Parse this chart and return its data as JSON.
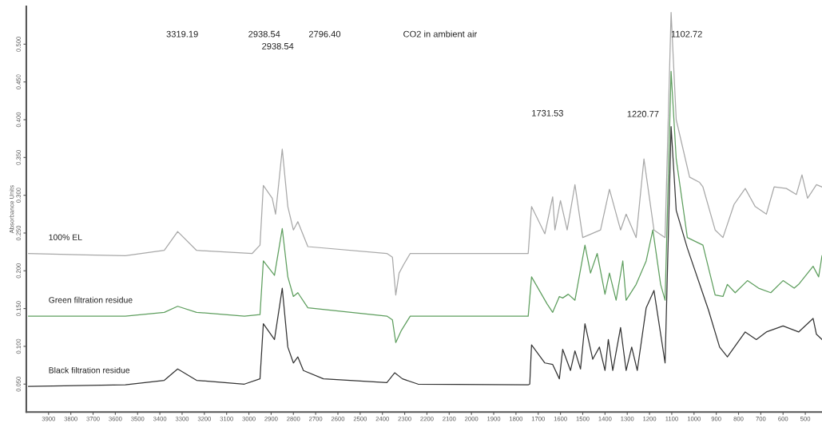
{
  "chart_data": {
    "type": "line",
    "ylabel": "Absorbance Units",
    "xlim": [
      4000,
      425
    ],
    "ylim": [
      0.013,
      0.55
    ],
    "xticks": [
      3900,
      3800,
      3700,
      3600,
      3500,
      3400,
      3300,
      3200,
      3100,
      3000,
      2900,
      2800,
      2700,
      2600,
      2500,
      2400,
      2300,
      2200,
      2100,
      2000,
      1900,
      1800,
      1700,
      1600,
      1500,
      1400,
      1300,
      1200,
      1100,
      1000,
      900,
      800,
      700,
      600,
      500
    ],
    "yticks": [
      {
        "value": 0.05,
        "label": "0.050"
      },
      {
        "value": 0.1,
        "label": "0.100"
      },
      {
        "value": 0.15,
        "label": "0.150"
      },
      {
        "value": 0.2,
        "label": "0.200"
      },
      {
        "value": 0.25,
        "label": "0.250"
      },
      {
        "value": 0.3,
        "label": "0.300"
      },
      {
        "value": 0.35,
        "label": "0.350"
      },
      {
        "value": 0.4,
        "label": "0.400"
      },
      {
        "value": 0.45,
        "label": "0.450"
      },
      {
        "value": 0.5,
        "label": "0.500"
      }
    ],
    "grid": false,
    "legend": false,
    "marker": "none",
    "line_style": "solid",
    "series": [
      {
        "name": "100% EL",
        "color": "#a8a8a8",
        "x": [
          3990,
          3735,
          3555,
          3380,
          3320,
          3235,
          2985,
          2950,
          2935,
          2895,
          2880,
          2850,
          2825,
          2800,
          2780,
          2735,
          2380,
          2355,
          2340,
          2325,
          2305,
          2275,
          1745,
          1730,
          1670,
          1635,
          1625,
          1600,
          1570,
          1535,
          1500,
          1420,
          1380,
          1330,
          1305,
          1260,
          1225,
          1180,
          1130,
          1103,
          1080,
          1020,
          975,
          960,
          905,
          870,
          820,
          770,
          725,
          675,
          640,
          585,
          540,
          515,
          490,
          450,
          425
        ],
        "values": [
          0.223,
          0.221,
          0.22,
          0.227,
          0.252,
          0.227,
          0.223,
          0.234,
          0.313,
          0.296,
          0.275,
          0.361,
          0.285,
          0.254,
          0.265,
          0.232,
          0.223,
          0.218,
          0.168,
          0.197,
          0.208,
          0.223,
          0.223,
          0.285,
          0.249,
          0.298,
          0.254,
          0.293,
          0.254,
          0.314,
          0.244,
          0.254,
          0.308,
          0.254,
          0.275,
          0.244,
          0.348,
          0.254,
          0.244,
          0.542,
          0.4,
          0.324,
          0.317,
          0.311,
          0.254,
          0.244,
          0.288,
          0.309,
          0.285,
          0.275,
          0.311,
          0.309,
          0.301,
          0.327,
          0.296,
          0.314,
          0.311
        ]
      },
      {
        "name": "Green filtration residue",
        "color": "#5e9e5e",
        "x": [
          3990,
          3555,
          3380,
          3320,
          3235,
          3020,
          2950,
          2935,
          2885,
          2850,
          2825,
          2800,
          2780,
          2735,
          2380,
          2355,
          2340,
          2315,
          2275,
          1745,
          1730,
          1660,
          1635,
          1605,
          1590,
          1565,
          1535,
          1490,
          1465,
          1435,
          1400,
          1380,
          1350,
          1320,
          1305,
          1260,
          1215,
          1185,
          1150,
          1130,
          1103,
          1080,
          1030,
          960,
          905,
          870,
          850,
          815,
          760,
          710,
          655,
          600,
          550,
          530,
          465,
          440,
          425
        ],
        "values": [
          0.14,
          0.14,
          0.145,
          0.153,
          0.145,
          0.14,
          0.142,
          0.213,
          0.194,
          0.256,
          0.192,
          0.166,
          0.171,
          0.151,
          0.14,
          0.135,
          0.105,
          0.121,
          0.14,
          0.14,
          0.192,
          0.156,
          0.145,
          0.166,
          0.164,
          0.169,
          0.161,
          0.234,
          0.197,
          0.223,
          0.169,
          0.197,
          0.161,
          0.213,
          0.161,
          0.182,
          0.213,
          0.254,
          0.182,
          0.161,
          0.464,
          0.348,
          0.244,
          0.234,
          0.168,
          0.166,
          0.182,
          0.171,
          0.187,
          0.177,
          0.171,
          0.187,
          0.177,
          0.182,
          0.206,
          0.192,
          0.22
        ]
      },
      {
        "name": "Black filtration residue",
        "color": "#333333",
        "x": [
          3990,
          3555,
          3380,
          3320,
          3235,
          3020,
          2950,
          2935,
          2885,
          2850,
          2825,
          2800,
          2780,
          2755,
          2665,
          2380,
          2345,
          2310,
          2240,
          1745,
          1738,
          1730,
          1670,
          1635,
          1605,
          1590,
          1555,
          1535,
          1510,
          1490,
          1455,
          1425,
          1400,
          1385,
          1365,
          1330,
          1305,
          1280,
          1255,
          1215,
          1180,
          1130,
          1103,
          1080,
          1030,
          935,
          885,
          850,
          770,
          720,
          675,
          600,
          530,
          465,
          450,
          425
        ],
        "values": [
          0.047,
          0.049,
          0.055,
          0.07,
          0.055,
          0.05,
          0.057,
          0.13,
          0.109,
          0.177,
          0.099,
          0.078,
          0.086,
          0.068,
          0.057,
          0.052,
          0.065,
          0.057,
          0.05,
          0.049,
          0.05,
          0.102,
          0.078,
          0.076,
          0.057,
          0.096,
          0.068,
          0.094,
          0.07,
          0.13,
          0.083,
          0.099,
          0.068,
          0.109,
          0.068,
          0.125,
          0.068,
          0.099,
          0.068,
          0.151,
          0.174,
          0.078,
          0.391,
          0.28,
          0.23,
          0.148,
          0.099,
          0.086,
          0.119,
          0.109,
          0.119,
          0.127,
          0.119,
          0.137,
          0.116,
          0.109
        ]
      }
    ],
    "annotations": [
      "3319.19",
      "2938.54",
      "2938.54",
      "2796.40",
      "CO2 in ambient air",
      "1102.72",
      "1731.53",
      "1220.77"
    ]
  }
}
